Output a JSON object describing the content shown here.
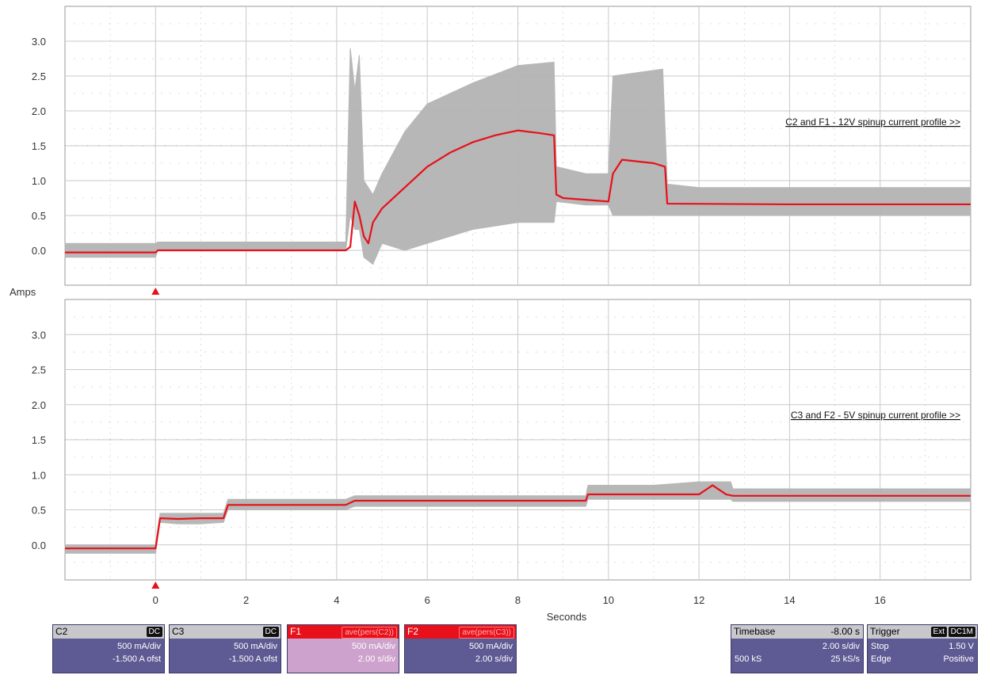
{
  "chart_data": [
    {
      "type": "line",
      "annotation": "C2 and F1 - 12V spinup current profile >>",
      "ylim": [
        -0.5,
        3.5
      ],
      "xlim": [
        -2,
        18
      ],
      "yticks": [
        "3.0",
        "2.5",
        "2.0",
        "1.5",
        "1.0",
        "0.5",
        "0.0"
      ],
      "series": [
        {
          "trace": "raw",
          "x": [
            -2,
            0,
            0.05,
            4.2,
            4.3,
            4.4,
            4.5,
            4.6,
            4.8,
            5.0,
            5.5,
            6.0,
            7.0,
            8.0,
            8.8,
            8.85,
            9.5,
            10.0,
            10.1,
            11.2,
            11.3,
            12.0,
            14.0,
            18.0
          ],
          "lo": [
            -0.1,
            -0.1,
            0.0,
            0.0,
            0.5,
            0.3,
            0.3,
            -0.1,
            -0.2,
            0.1,
            0.0,
            0.1,
            0.3,
            0.4,
            0.4,
            0.7,
            0.65,
            0.65,
            0.5,
            0.5,
            0.5,
            0.5,
            0.5,
            0.5
          ],
          "hi": [
            0.1,
            0.1,
            0.12,
            0.12,
            2.9,
            2.3,
            2.8,
            1.0,
            0.8,
            1.1,
            1.7,
            2.1,
            2.4,
            2.65,
            2.7,
            1.2,
            1.1,
            1.1,
            2.5,
            2.6,
            0.95,
            0.9,
            0.9,
            0.9
          ]
        },
        {
          "trace": "average",
          "x": [
            -2,
            0,
            0.05,
            4.2,
            4.3,
            4.4,
            4.5,
            4.6,
            4.7,
            4.8,
            5.0,
            5.5,
            6.0,
            6.5,
            7.0,
            7.5,
            8.0,
            8.5,
            8.8,
            8.85,
            9.0,
            10.0,
            10.1,
            10.3,
            11.0,
            11.25,
            11.3,
            14.0,
            18.0
          ],
          "y": [
            -0.03,
            -0.03,
            0.0,
            0.0,
            0.05,
            0.7,
            0.5,
            0.2,
            0.1,
            0.4,
            0.6,
            0.9,
            1.2,
            1.4,
            1.55,
            1.65,
            1.72,
            1.68,
            1.65,
            0.8,
            0.75,
            0.7,
            1.1,
            1.3,
            1.25,
            1.2,
            0.67,
            0.66,
            0.66
          ]
        }
      ]
    },
    {
      "type": "line",
      "annotation": "C3 and F2 - 5V spinup current profile >>",
      "ylim": [
        -0.5,
        3.5
      ],
      "xlim": [
        -2,
        18
      ],
      "yticks": [
        "3.0",
        "2.5",
        "2.0",
        "1.5",
        "1.0",
        "0.5",
        "0.0"
      ],
      "series": [
        {
          "trace": "raw",
          "x": [
            -2,
            0,
            0.1,
            0.5,
            1.0,
            1.5,
            1.6,
            4.2,
            4.4,
            9.5,
            9.55,
            11.0,
            12.0,
            12.7,
            12.75,
            18.0
          ],
          "lo": [
            -0.12,
            -0.12,
            0.32,
            0.3,
            0.3,
            0.32,
            0.5,
            0.5,
            0.55,
            0.55,
            0.65,
            0.65,
            0.65,
            0.65,
            0.62,
            0.62
          ],
          "hi": [
            0.0,
            0.0,
            0.45,
            0.45,
            0.45,
            0.45,
            0.65,
            0.65,
            0.7,
            0.7,
            0.85,
            0.85,
            0.9,
            0.9,
            0.8,
            0.8
          ]
        },
        {
          "trace": "average",
          "x": [
            -2,
            0,
            0.1,
            0.5,
            1.0,
            1.5,
            1.6,
            4.2,
            4.4,
            9.5,
            9.55,
            11.0,
            12.0,
            12.3,
            12.6,
            12.75,
            18.0
          ],
          "y": [
            -0.05,
            -0.05,
            0.38,
            0.37,
            0.38,
            0.38,
            0.57,
            0.57,
            0.63,
            0.63,
            0.72,
            0.72,
            0.72,
            0.85,
            0.72,
            0.7,
            0.7
          ]
        }
      ]
    }
  ],
  "axes": {
    "ylabel": "Amps",
    "xlabel": "Seconds",
    "xticks": [
      "0",
      "2",
      "4",
      "6",
      "8",
      "10",
      "12",
      "14",
      "16"
    ]
  },
  "colors": {
    "raw": "#b4b4b4",
    "average": "#e8101a",
    "grid": "#c9c9c9",
    "marker": "#e8101a"
  },
  "channels": [
    {
      "name": "C2",
      "coupling": "DC",
      "scale": "500 mA/div",
      "offset": "-1.500 A ofst"
    },
    {
      "name": "C3",
      "coupling": "DC",
      "scale": "500 mA/div",
      "offset": "-1.500 A ofst"
    },
    {
      "name": "F1",
      "func": "ave(pers(C2))",
      "scale": "500 mA/div",
      "timescale": "2.00 s/div"
    },
    {
      "name": "F2",
      "func": "ave(pers(C3))",
      "scale": "500 mA/div",
      "timescale": "2.00 s/div"
    }
  ],
  "timebase": {
    "label": "Timebase",
    "delay": "-8.00 s",
    "timescale": "2.00 s/div",
    "samples": "500 kS",
    "rate": "25 kS/s"
  },
  "trigger": {
    "label": "Trigger",
    "source": "Ext",
    "coupling": "DC1M",
    "mode": "Stop",
    "level": "1.50 V",
    "type": "Edge",
    "slope": "Positive"
  }
}
